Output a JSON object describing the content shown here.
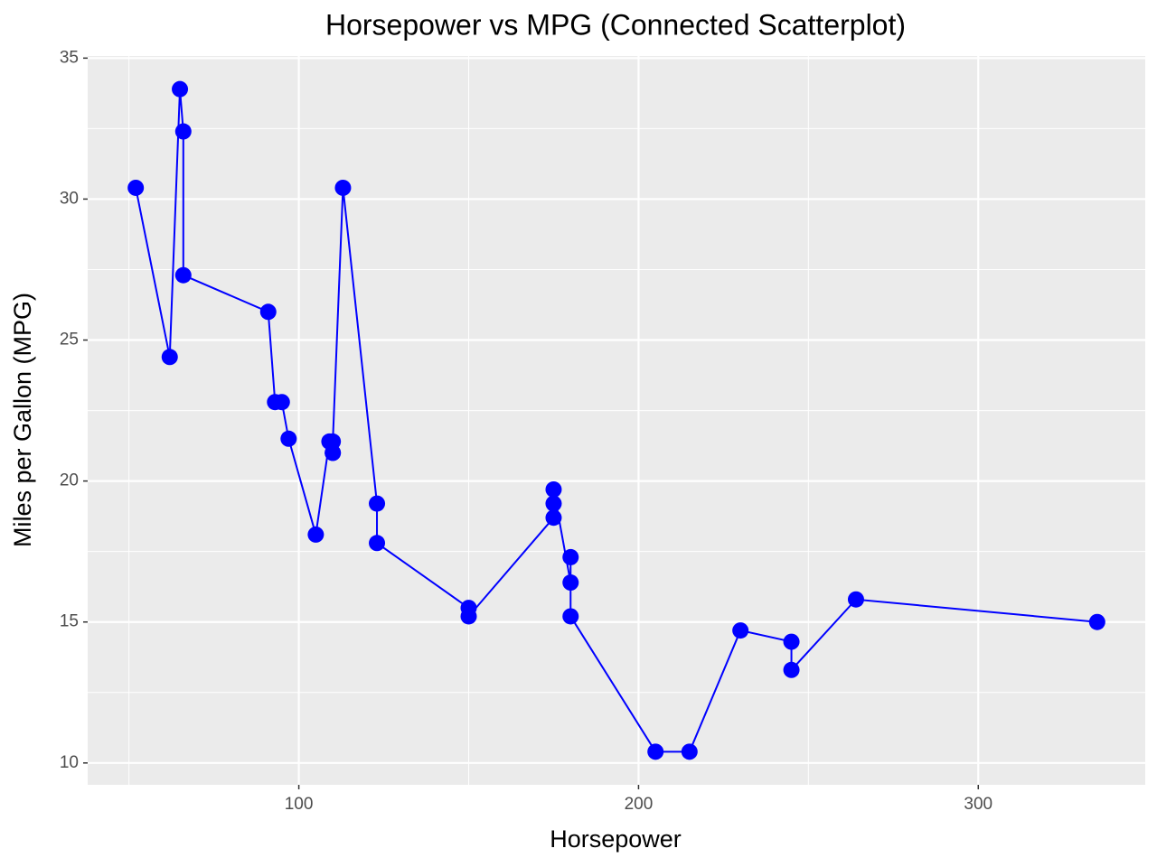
{
  "chart_data": {
    "type": "connected-scatter",
    "title": "Horsepower vs MPG (Connected Scatterplot)",
    "x_label": "Horsepower",
    "y_label": "Miles per Gallon (MPG)",
    "color": "#0000ff",
    "x": [
      52,
      62,
      65,
      66,
      66,
      91,
      93,
      95,
      97,
      105,
      109,
      110,
      110,
      110,
      113,
      123,
      123,
      150,
      150,
      175,
      175,
      175,
      180,
      180,
      180,
      205,
      215,
      230,
      245,
      245,
      264,
      335
    ],
    "y": [
      30.4,
      24.4,
      33.9,
      32.4,
      27.3,
      26.0,
      22.8,
      22.8,
      21.5,
      18.1,
      21.4,
      21.0,
      21.0,
      21.4,
      30.4,
      19.2,
      17.8,
      15.5,
      15.2,
      18.7,
      19.2,
      19.7,
      16.4,
      17.3,
      15.2,
      10.4,
      10.4,
      14.7,
      14.3,
      13.3,
      15.8,
      15.0
    ],
    "xlim": [
      37.85,
      349.15
    ],
    "ylim": [
      9.225,
      35.075
    ],
    "xticks": [
      100,
      200,
      300
    ],
    "yticks": [
      10,
      15,
      20,
      25,
      30,
      35
    ],
    "grid": true
  }
}
